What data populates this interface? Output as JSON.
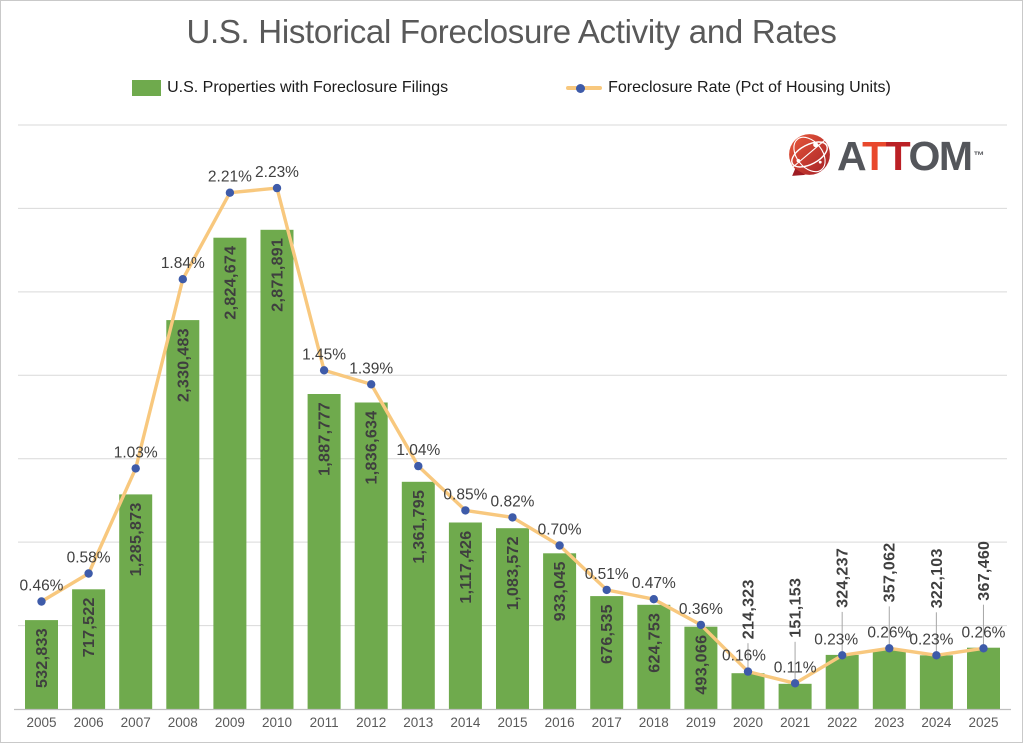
{
  "title": "U.S. Historical Foreclosure Activity and Rates",
  "legend": [
    {
      "label": "U.S. Properties with Foreclosure Filings",
      "marker": "bar-swatch"
    },
    {
      "label": "Foreclosure Rate (Pct of Housing Units)",
      "marker": "line-dot"
    }
  ],
  "logo": {
    "brand": "ATTOM",
    "tm": "™",
    "letters": [
      {
        "ch": "A",
        "color": "#54565B"
      },
      {
        "ch": "T",
        "color": "#E8482C"
      },
      {
        "ch": "T",
        "color": "#BB2025"
      },
      {
        "ch": "O",
        "color": "#54565B"
      },
      {
        "ch": "M",
        "color": "#54565B"
      }
    ]
  },
  "colors": {
    "bar": "#6FAA4D",
    "bar_label": "#3F3F3F",
    "line": "#F8C87E",
    "marker": "#3E5BA9",
    "grid": "#D9D9D9",
    "axis": "#BFBFBF",
    "leader": "#A6A6A6",
    "title": "#595959",
    "tick": "#595959"
  },
  "chart_data": {
    "type": "bar",
    "title": "U.S. Historical Foreclosure Activity and Rates",
    "xlabel": "",
    "ylabel": "",
    "grid": true,
    "legend_position": "top",
    "categories": [
      "2005",
      "2006",
      "2007",
      "2008",
      "2009",
      "2010",
      "2011",
      "2012",
      "2013",
      "2014",
      "2015",
      "2016",
      "2017",
      "2018",
      "2019",
      "2020",
      "2021",
      "2022",
      "2023",
      "2024",
      "2025"
    ],
    "y1": {
      "min": 0,
      "max": 3500000,
      "gridline_step": 500000
    },
    "y2": {
      "min": 0,
      "max": 2.5
    },
    "series": [
      {
        "name": "U.S. Properties with Foreclosure Filings",
        "type": "bar",
        "color": "#6FAA4D",
        "values": [
          532833,
          717522,
          1285873,
          2330483,
          2824674,
          2871891,
          1887777,
          1836634,
          1361795,
          1117426,
          1083572,
          933045,
          676535,
          624753,
          493066,
          214323,
          151153,
          324237,
          357062,
          322103,
          367460
        ],
        "labels": [
          "532,833",
          "717,522",
          "1,285,873",
          "2,330,483",
          "2,824,674",
          "2,871,891",
          "1,887,777",
          "1,836,634",
          "1,361,795",
          "1,117,426",
          "1,083,572",
          "933,045",
          "676,535",
          "624,753",
          "493,066",
          "214,323",
          "151,153",
          "324,237",
          "357,062",
          "322,103",
          "367,460"
        ]
      },
      {
        "name": "Foreclosure Rate (Pct of Housing Units)",
        "type": "line",
        "line_color": "#F8C87E",
        "marker_color": "#3E5BA9",
        "values": [
          0.46,
          0.58,
          1.03,
          1.84,
          2.21,
          2.23,
          1.45,
          1.39,
          1.04,
          0.85,
          0.82,
          0.7,
          0.51,
          0.47,
          0.36,
          0.16,
          0.11,
          0.23,
          0.26,
          0.23,
          0.26
        ],
        "labels": [
          "0.46%",
          "0.58%",
          "1.03%",
          "1.84%",
          "2.21%",
          "2.23%",
          "1.45%",
          "1.39%",
          "1.04%",
          "0.85%",
          "0.82%",
          "0.70%",
          "0.51%",
          "0.47%",
          "0.36%",
          "0.16%",
          "0.11%",
          "0.23%",
          "0.26%",
          "0.23%",
          "0.26%"
        ]
      }
    ]
  }
}
